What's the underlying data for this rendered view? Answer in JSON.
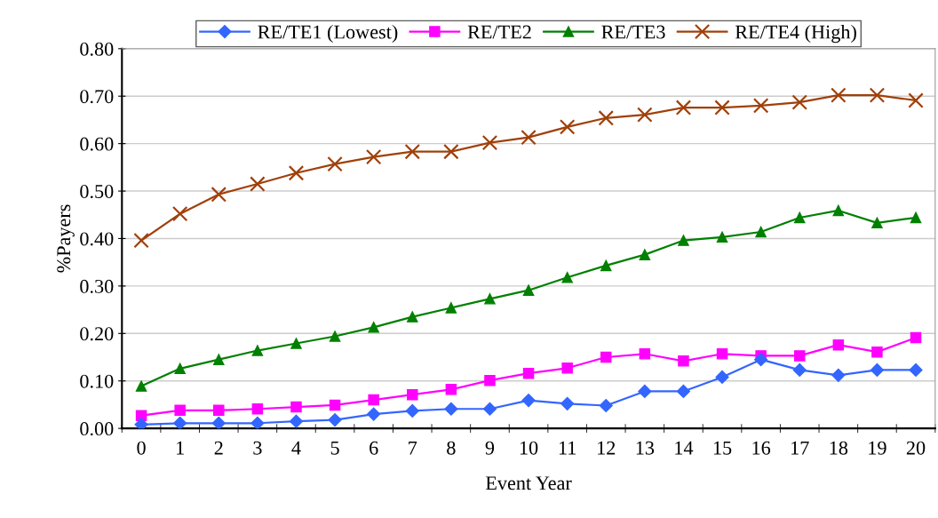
{
  "chart_data": {
    "type": "line",
    "xlabel": "Event Year",
    "ylabel": "%Payers",
    "categories": [
      "0",
      "1",
      "2",
      "3",
      "4",
      "5",
      "6",
      "7",
      "8",
      "9",
      "10",
      "11",
      "12",
      "13",
      "14",
      "15",
      "16",
      "17",
      "18",
      "19",
      "20"
    ],
    "series": [
      {
        "name": "RE/TE1 (Lowest)",
        "color": "#3366ff",
        "marker": "diamond",
        "values": [
          0.008,
          0.011,
          0.011,
          0.011,
          0.015,
          0.018,
          0.03,
          0.037,
          0.041,
          0.041,
          0.059,
          0.052,
          0.048,
          0.078,
          0.078,
          0.108,
          0.145,
          0.123,
          0.112,
          0.123,
          0.123
        ]
      },
      {
        "name": "RE/TE2",
        "color": "#ff00ff",
        "marker": "square",
        "values": [
          0.027,
          0.038,
          0.038,
          0.041,
          0.045,
          0.049,
          0.06,
          0.071,
          0.082,
          0.101,
          0.116,
          0.127,
          0.15,
          0.157,
          0.142,
          0.157,
          0.153,
          0.153,
          0.176,
          0.161,
          0.191
        ]
      },
      {
        "name": "RE/TE3",
        "color": "#008000",
        "marker": "triangle",
        "values": [
          0.089,
          0.126,
          0.145,
          0.164,
          0.179,
          0.194,
          0.213,
          0.235,
          0.254,
          0.273,
          0.291,
          0.318,
          0.343,
          0.366,
          0.396,
          0.403,
          0.414,
          0.444,
          0.459,
          0.433,
          0.444
        ]
      },
      {
        "name": "RE/TE4 (High)",
        "color": "#a0400a",
        "marker": "cross",
        "values": [
          0.396,
          0.452,
          0.493,
          0.515,
          0.538,
          0.557,
          0.572,
          0.583,
          0.583,
          0.602,
          0.613,
          0.635,
          0.654,
          0.661,
          0.676,
          0.676,
          0.68,
          0.687,
          0.702,
          0.702,
          0.691
        ]
      }
    ],
    "ylim": [
      0,
      0.8
    ],
    "yticks": [
      {
        "value": 0,
        "label": "0.00"
      },
      {
        "value": 0.1,
        "label": "0.10"
      },
      {
        "value": 0.2,
        "label": "0.20"
      },
      {
        "value": 0.3,
        "label": "0.30"
      },
      {
        "value": 0.4,
        "label": "0.40"
      },
      {
        "value": 0.5,
        "label": "0.50"
      },
      {
        "value": 0.6,
        "label": "0.60"
      },
      {
        "value": 0.7,
        "label": "0.70"
      },
      {
        "value": 0.8,
        "label": "0.80"
      }
    ],
    "grid": "y",
    "legend": "top",
    "line_style": "solid"
  }
}
